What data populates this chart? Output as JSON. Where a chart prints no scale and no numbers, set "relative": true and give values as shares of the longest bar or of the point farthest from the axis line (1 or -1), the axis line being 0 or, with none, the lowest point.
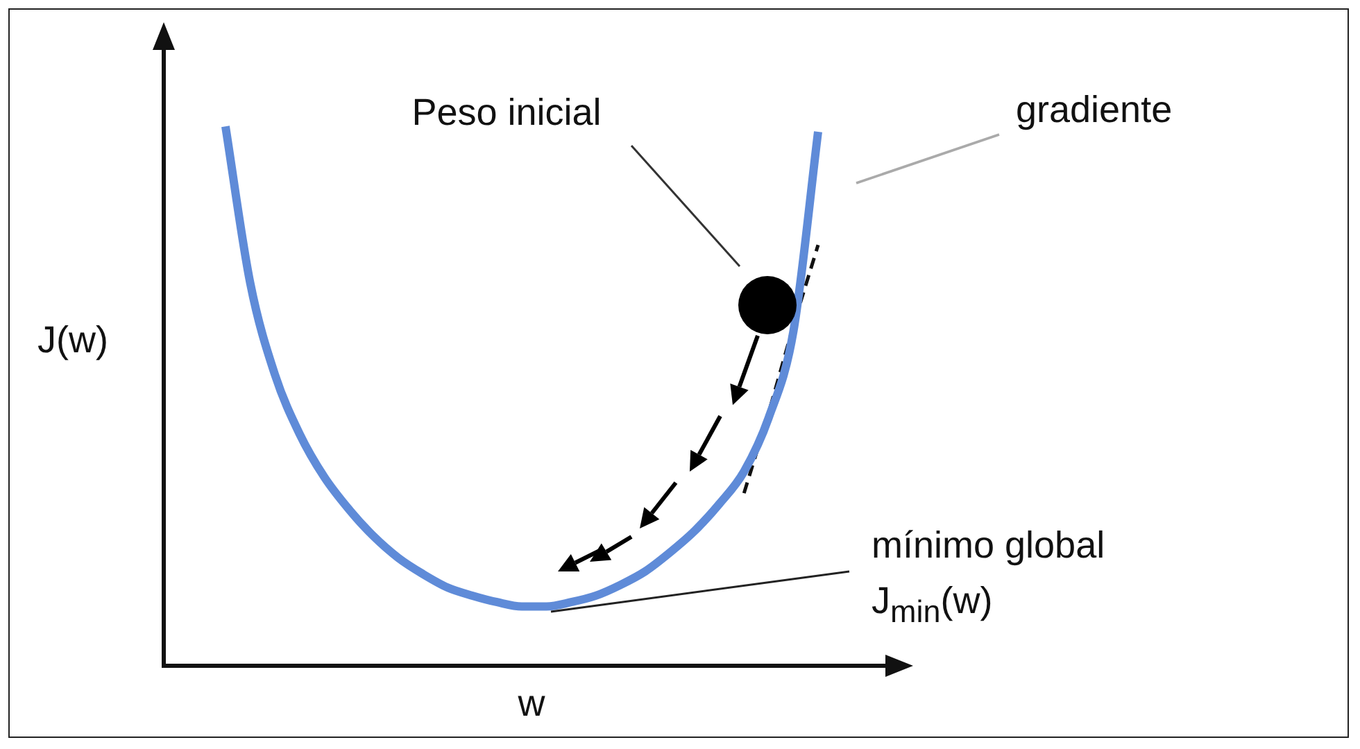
{
  "chart_data": {
    "type": "line",
    "relative": true,
    "xlabel": "w",
    "ylabel": "J(w)",
    "categories": [
      null,
      null,
      null,
      null,
      null,
      null,
      null,
      null,
      null,
      null,
      null,
      null,
      null,
      null,
      null,
      null,
      null,
      null,
      null,
      null,
      null,
      null,
      null,
      null,
      null
    ],
    "series": [
      {
        "color": "#5f8bd8",
        "values": [
          1.0,
          0.71,
          0.54,
          0.43,
          0.35,
          0.29,
          0.24,
          0.2,
          0.17,
          0.145,
          0.13,
          0.118,
          0.11,
          0.11,
          0.118,
          0.13,
          0.15,
          0.175,
          0.21,
          0.25,
          0.3,
          0.36,
          0.46,
          0.62,
          0.99
        ]
      },
      {
        "type": "line",
        "line_style": "dashed",
        "color": "#111111",
        "values": [
          null,
          null,
          null,
          null,
          null,
          null,
          null,
          null,
          null,
          null,
          null,
          null,
          null,
          null,
          null,
          null,
          null,
          null,
          null,
          null,
          null,
          0.32,
          0.47,
          0.63,
          0.78
        ]
      }
    ],
    "annotations": [
      "Peso inicial",
      "gradiente",
      "mínimo global",
      "J$_{min}$(w)"
    ],
    "marker": "none",
    "line_style": "solid",
    "grid": false,
    "legend": false
  }
}
